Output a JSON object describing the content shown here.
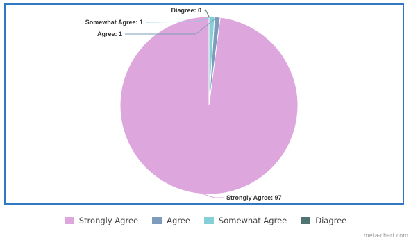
{
  "chart_data": {
    "type": "pie",
    "categories": [
      "Strongly Agree",
      "Agree",
      "Somewhat Agree",
      "Diagree"
    ],
    "values": [
      97,
      1,
      1,
      0
    ],
    "callout_labels": [
      "Strongly Agree: 97",
      "Agree: 1",
      "Somewhat Agree: 1",
      "Diagree: 0"
    ],
    "colors": [
      "#dda6dd",
      "#7d9cbb",
      "#85cfd7",
      "#4f7472"
    ],
    "legend_placement": "bottom"
  },
  "watermark": "meta-chart.com"
}
